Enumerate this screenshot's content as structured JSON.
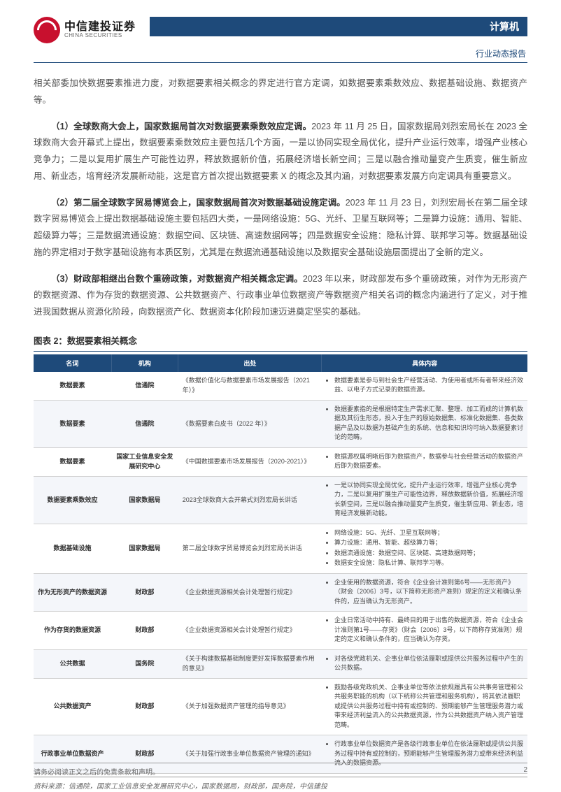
{
  "header": {
    "logo_cn": "中信建投证券",
    "logo_en": "CHINA SECURITIES",
    "banner": "计算机",
    "subheader": "行业动态报告"
  },
  "intro": "相关部委加快数据要素推进力度，对数据要素相关概念的界定进行官方定调，如数据要素乘数效应、数据基础设施、数据资产等。",
  "paras": [
    {
      "lead": "（1）全球数商大会上，国家数据局首次对数据要素乘数效应定调。",
      "body": "2023 年 11 月 25 日，国家数据局刘烈宏局长在 2023 全球数商大会开幕式上提出，数据要素乘数效应主要包括几个方面，一是以协同实现全局优化，提升产业运行效率，增强产业核心竞争力；二是以复用扩展生产可能性边界，释放数据新价值，拓展经济增长新空间；三是以融合推动量变产生质变，催生新应用、新业态，培育经济发展新动能，这是官方首次提出数据要素 X 的概念及其内涵，对数据要素发展方向定调具有重要意义。"
    },
    {
      "lead": "（2）第二届全球数字贸易博览会上，国家数据局首次对数据基础设施定调。",
      "body": "2023 年 11 月 23 日，刘烈宏局长在第二届全球数字贸易博览会上提出数据基础设施主要包括四大类，一是网络设施：5G、光纤、卫星互联网等；二是算力设施：通用、智能、超级算力等；三是数据流通设施：数据空间、区块链、高速数据网等；四是数据安全设施：隐私计算、联邦学习等。数据基础设施的界定相对于数字基础设施有本质区别，尤其是在数据流通基础设施以及数据安全基础设施层面提出了全新的定义。"
    },
    {
      "lead": "（3）财政部相继出台数个重磅政策，对数据资产相关概念定调。",
      "body": "2023 年以来，财政部发布多个重磅政策，对作为无形资产的数据资源、作为存货的数据资源、公共数据资产、行政事业单位数据资产等数据资产相关名词的概念内涵进行了定义，对于推进我国数据从资源化阶段，向数据资产化、数据资本化阶段加速迈进奠定坚实的基础。"
    }
  ],
  "table": {
    "caption": "图表 2：数据要素相关概念",
    "caption_color": "#333333",
    "header_bg": "#1e4a7a",
    "header_fg": "#ffffff",
    "row_alt_bg": "#f4f6fa",
    "border_color": "#d0d0d0",
    "font_size": 9,
    "columns": [
      "名词",
      "机构",
      "出处",
      "具体内容"
    ],
    "col_widths_pct": [
      13,
      14,
      30,
      43
    ],
    "rows": [
      {
        "name": "数据要素",
        "org": "信通院",
        "src": "《数据价值化与数据要素市场发展报告（2021 年）》",
        "desc": [
          "数据要素是参与到社会生产经营活动、为使用者或所有者带来经济效益、以电子方式记录的数据资源。"
        ]
      },
      {
        "name": "数据要素",
        "org": "信通院",
        "src": "《数据要素白皮书（2022 年）》",
        "desc": [
          "数据要素指的是根据特定生产需求汇聚、整理、加工而成的计算机数据及其衍生形态，投入于生产的原始数据集、标准化数据集、各类数据产品及以数据为基础产生的系统、信息和知识均可纳入数据要素讨论的范畴。"
        ]
      },
      {
        "name": "数据要素",
        "org": "国家工业信息安全发展研究中心",
        "src": "《中国数据要素市场发展报告（2020-2021）》",
        "desc": [
          "数据源权属明晰后即为数据资产，数据参与社会经营活动的数据资产后即为数据要素。"
        ]
      },
      {
        "name": "数据要素乘数效应",
        "org": "国家数据局",
        "src": "2023全球数商大会开幕式刘烈宏局长讲话",
        "desc": [
          "一是以协同实现全局优化，提升产业运行效率，增强产业核心竞争力，二是以复用扩展生产可能性边界，释放数据新价值，拓展经济增长新空间，三是以融合推动量变产生质变，催生新应用、新业态，培育经济发展新动能。"
        ]
      },
      {
        "name": "数据基础设施",
        "org": "国家数据局",
        "src": "第二届全球数字贸易博览会刘烈宏局长讲话",
        "desc": [
          "网络设施：5G、光纤、卫星互联网等；",
          "算力设施：通用、智能、超级算力等；",
          "数据流通设施：数据空间、区块链、高速数据网等；",
          "数据安全设施：隐私计算、联邦学习等。"
        ]
      },
      {
        "name": "作为无形资产的数据资源",
        "org": "财政部",
        "src": "《企业数据资源相关会计处理暂行规定》",
        "desc": [
          "企业使用的数据资源，符合《企业会计准则第6号——无形资产》（财会〔2006〕3号，以下简称无形资产准则）规定的定义和确认条件的，应当确认为无形资产。"
        ]
      },
      {
        "name": "作为存货的数据资源",
        "org": "财政部",
        "src": "《企业数据资源相关会计处理暂行规定》",
        "desc": [
          "企业日常活动中持有、最终目的用于出售的数据资源，符合《企业会计准则第1号——存货》（财会〔2006〕3号，以下简称存货准则）规定的定义和确认条件的，应当确认为存货。"
        ]
      },
      {
        "name": "公共数据",
        "org": "国务院",
        "src": "《关于构建数据基础制度更好发挥数据要素作用的意见》",
        "desc": [
          "对各级党政机关、企事业单位依法履职或提供公共服务过程中产生的公共数据。"
        ]
      },
      {
        "name": "公共数据资产",
        "org": "财政部",
        "src": "《关于加强数据资产管理的指导意见》",
        "desc": [
          "鼓励各级党政机关、企事业单位等依法依规履具有公共事务管理和公共服务职能的机构（以下统称公共管理和服务机构），将其依法履职或提供公共服务过程中持有或控制的、预期能够产生管理服务潜力或带来经济利益流入的公共数据资源，作为公共数据资产纳入资产管理范畴。"
        ]
      },
      {
        "name": "行政事业单位数据资产",
        "org": "财政部",
        "src": "《关于加强行政事业单位数据资产管理的通知》",
        "desc": [
          "行政事业单位数据资产是各级行政事业单位在依法履职或提供公共服务过程中持有或控制的，预期能够产生管理服务潜力或带来经济利益流入的数据资源。"
        ]
      }
    ],
    "source": "资料来源：信通院，国家工业信息安全发展研究中心，国家数据局，财政部，国务院，中信建投"
  },
  "footer": {
    "disclaimer": "请务必阅读正文之后的免责条款和声明。",
    "page": "2"
  },
  "colors": {
    "brand_red": "#c8102e",
    "brand_blue": "#1e4a7a",
    "text": "#505050",
    "text_strong": "#333333",
    "muted": "#666666",
    "divider": "#999999",
    "background": "#ffffff"
  }
}
